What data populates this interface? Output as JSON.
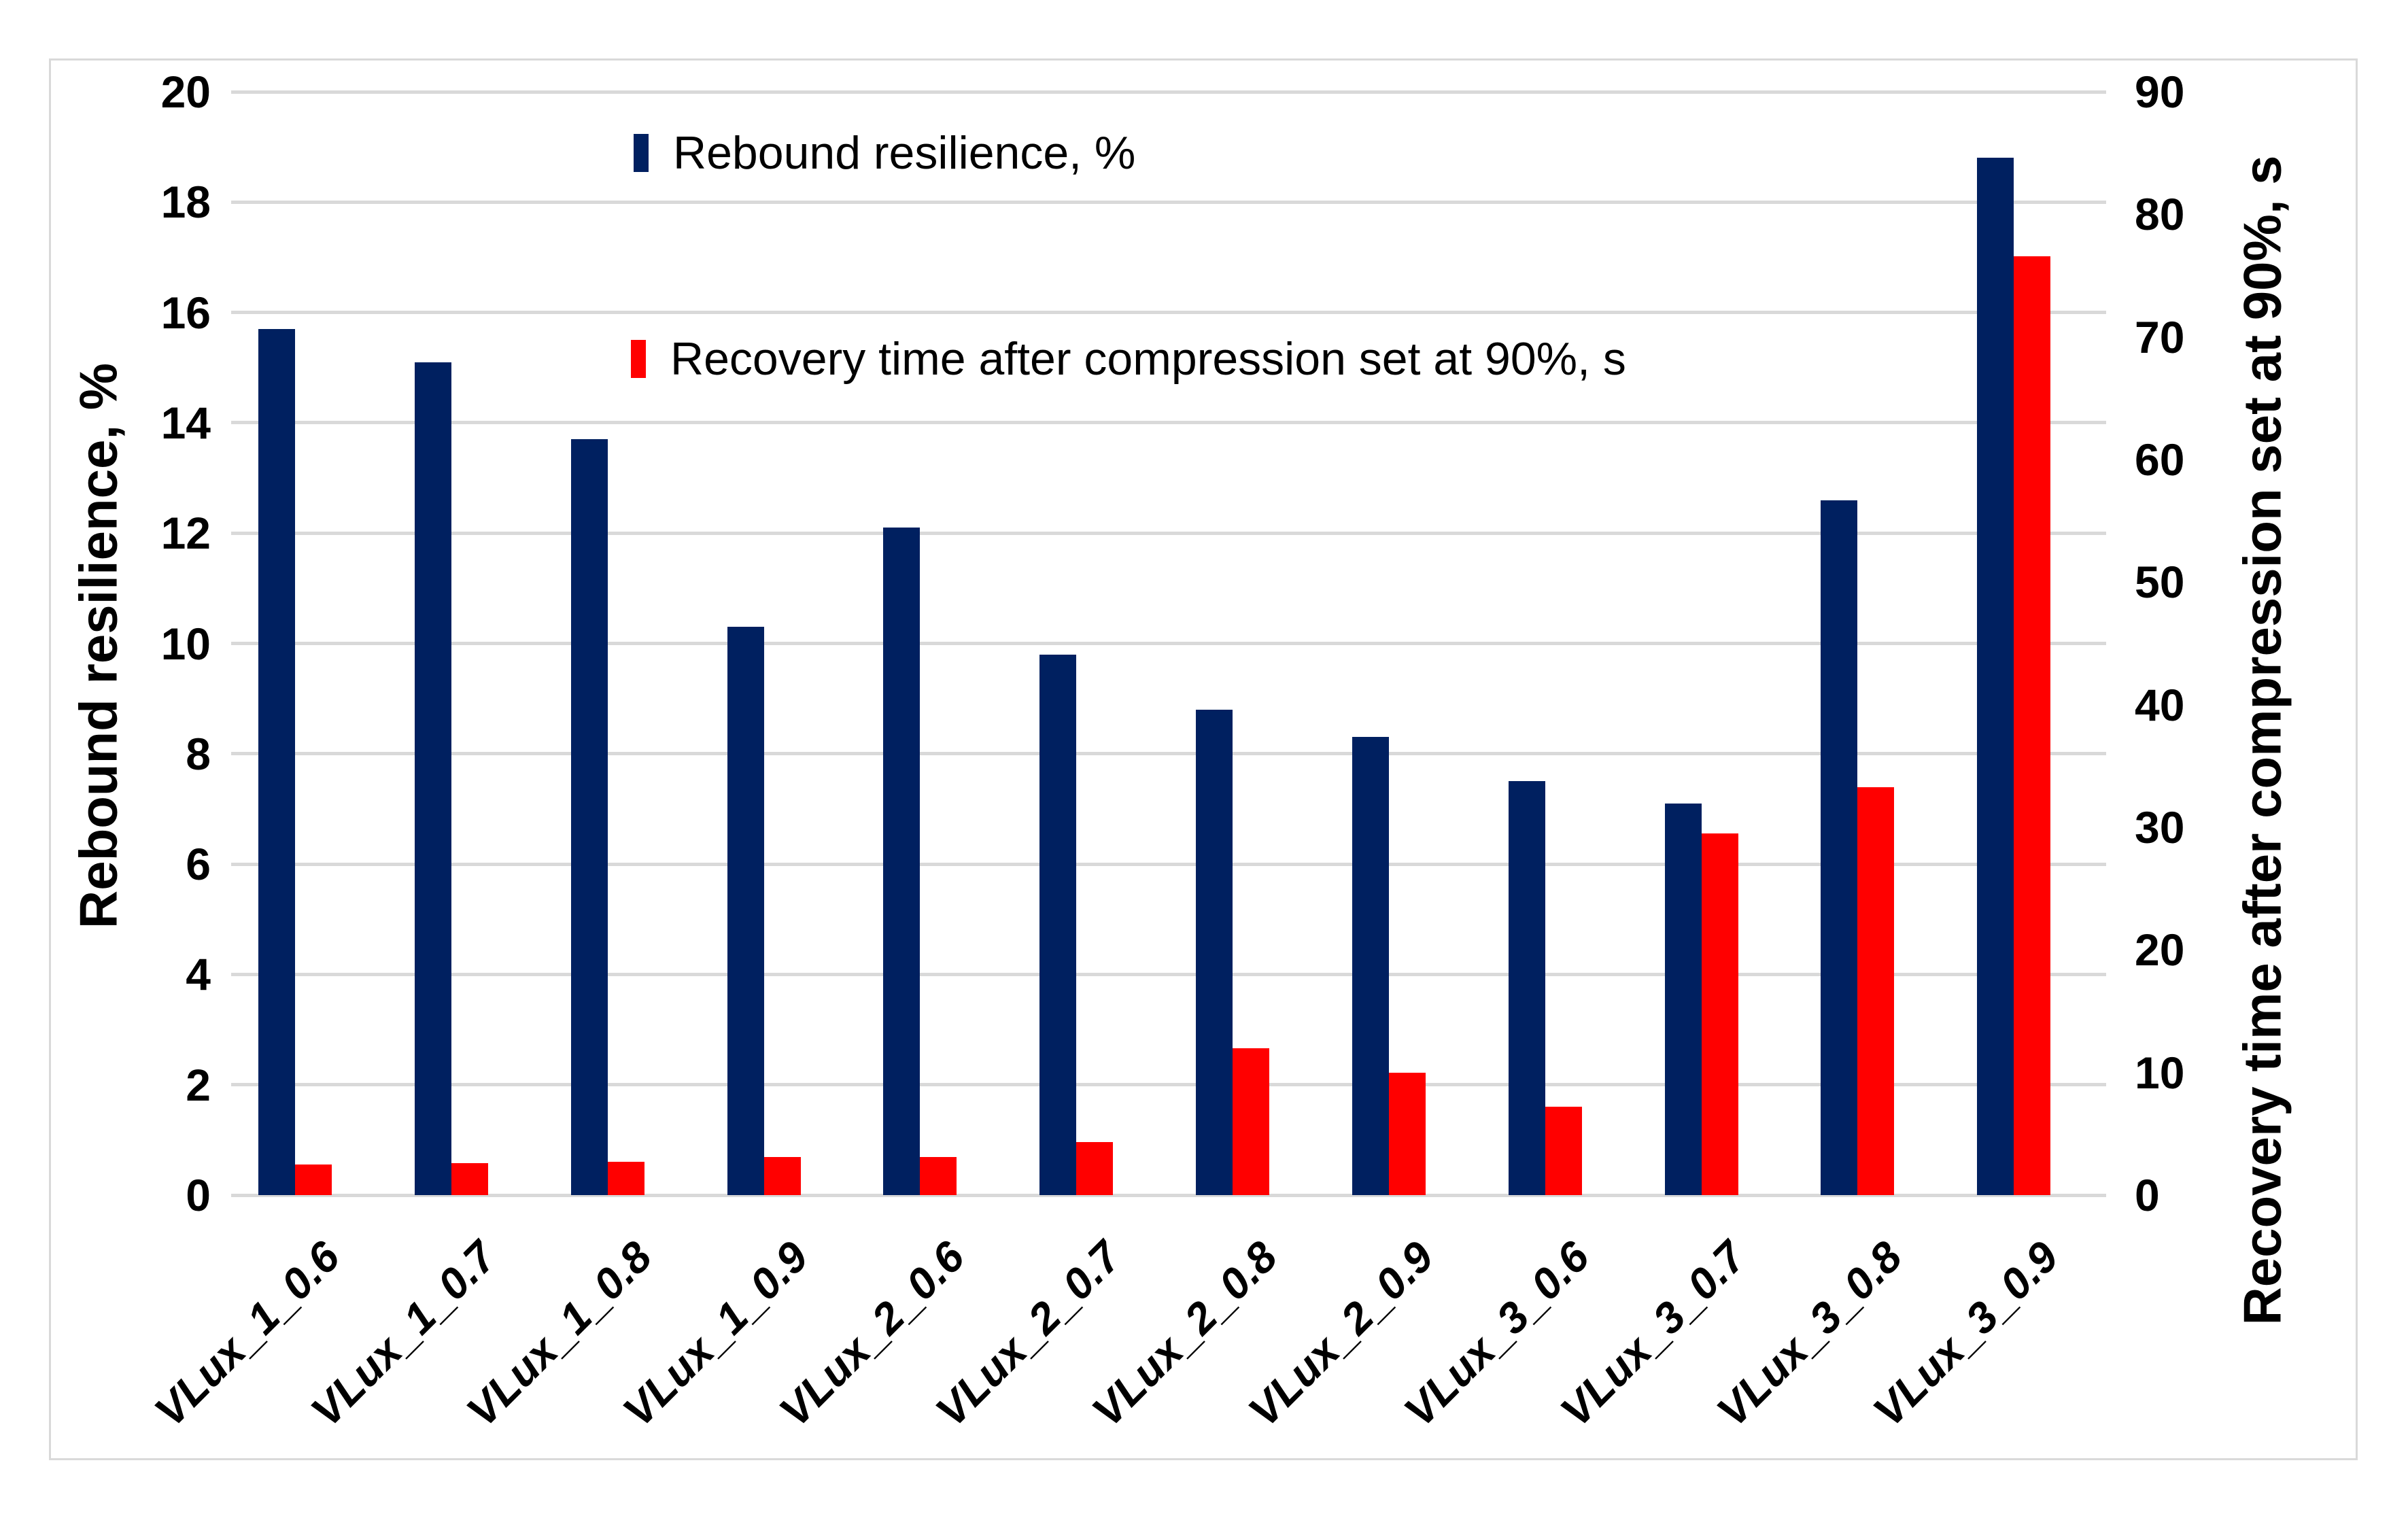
{
  "chart_data": {
    "type": "bar",
    "title": "",
    "categories": [
      "VLux_1_0.6",
      "VLux_1_0.7",
      "VLux_1_0.8",
      "VLux_1_0.9",
      "VLux_2_0.6",
      "VLux_2_0.7",
      "VLux_2_0.8",
      "VLux_2_0.9",
      "VLux_3_0.6",
      "VLux_3_0.7",
      "VLux_3_0.8",
      "VLux_3_0.9"
    ],
    "series": [
      {
        "name": "Rebound resilience, %",
        "axis": "left",
        "color": "#002060",
        "values": [
          15.7,
          15.1,
          13.7,
          10.3,
          12.1,
          9.8,
          8.8,
          8.3,
          7.5,
          7.1,
          12.6,
          18.8
        ]
      },
      {
        "name": "Recovery time after compression set at 90%, s",
        "axis": "right",
        "color": "#FF0000",
        "values": [
          2.5,
          2.6,
          2.7,
          3.1,
          3.1,
          4.3,
          12.0,
          10.0,
          7.2,
          29.5,
          33.3,
          76.6
        ]
      }
    ],
    "left_axis": {
      "label": "Rebound resilience, %",
      "min": 0,
      "max": 20,
      "step": 2
    },
    "right_axis": {
      "label": "Recovery time after compression set at 90%, s",
      "min": 0,
      "max": 90,
      "step": 10
    },
    "grid": "horizontal",
    "legend_position": "inside-top-center",
    "colors": {
      "grid": "#D9D9D9",
      "frame_border": "#D9D9D9",
      "text": "#000000",
      "background": "#FFFFFF"
    }
  },
  "legend": {
    "items": [
      {
        "label": "Rebound resilience, %",
        "color": "#002060"
      },
      {
        "label": "Recovery time after compression set at 90%, s",
        "color": "#FF0000"
      }
    ]
  }
}
